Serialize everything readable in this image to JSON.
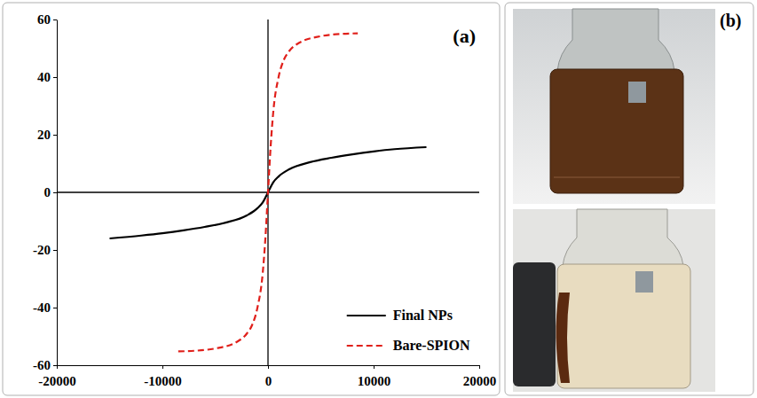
{
  "chart_data": {
    "type": "line",
    "annotations": [
      "(a)"
    ],
    "xlim": [
      -20000,
      20000
    ],
    "xticks": [
      -20000,
      -10000,
      0,
      10000,
      20000
    ],
    "ylim": [
      -60,
      60
    ],
    "yticks": [
      -60,
      -40,
      -20,
      0,
      20,
      40,
      60
    ],
    "grid": false,
    "legend": "lower right",
    "series": [
      {
        "name": "Final NPs",
        "color": "#000000",
        "line_style": "solid",
        "x": [
          -15000,
          -12000,
          -10000,
          -8000,
          -6000,
          -4000,
          -2000,
          -1000,
          -500,
          0,
          500,
          1000,
          2000,
          4000,
          6000,
          8000,
          10000,
          12000,
          15000
        ],
        "values": [
          -16,
          -15,
          -14.2,
          -13.2,
          -12,
          -10.5,
          -8,
          -5.5,
          -3.5,
          0,
          3.5,
          5.5,
          8,
          10.5,
          12,
          13.2,
          14.2,
          15,
          15.7
        ]
      },
      {
        "name": "Bare-SPION",
        "color": "#e0201b",
        "line_style": "dashed",
        "x": [
          -8500,
          -7000,
          -5000,
          -3000,
          -2000,
          -1500,
          -1000,
          -500,
          -250,
          0,
          250,
          500,
          1000,
          1500,
          2000,
          3000,
          5000,
          7000,
          8500
        ],
        "values": [
          -55.2,
          -55,
          -54.2,
          -52,
          -49,
          -46,
          -40,
          -28,
          -16,
          0,
          16,
          28,
          40,
          46,
          49,
          52,
          54.2,
          55,
          55.2
        ]
      }
    ]
  },
  "photo_panel": {
    "label": "(b)"
  }
}
